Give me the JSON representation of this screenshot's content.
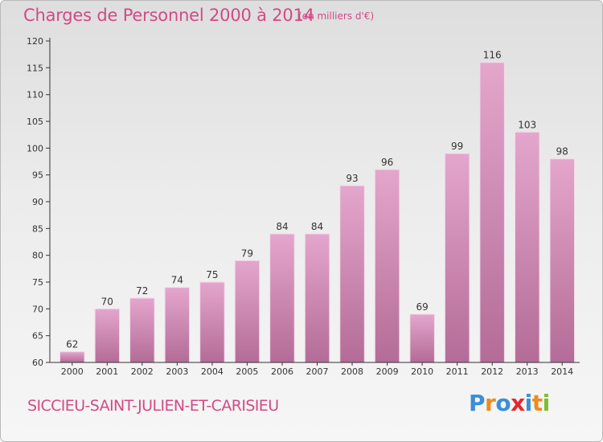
{
  "header": {
    "title": "Charges de Personnel 2000 à 2014",
    "unit": "(en milliers d'€)"
  },
  "footer": {
    "place": "SICCIEU-SAINT-JULIEN-ET-CARISIEU",
    "logo": [
      "P",
      "r",
      "o",
      "x",
      "i",
      "t",
      "i"
    ],
    "logo_colors": [
      "#3a8fd6",
      "#f08a1c",
      "#3a8fd6",
      "#e8262d",
      "#3a8fd6",
      "#f08a1c",
      "#7bbf2a"
    ]
  },
  "colors": {
    "title": "#d24a86",
    "bar_top": "#e4a6cc",
    "bar_bottom": "#b36c97",
    "axis": "#333333"
  },
  "chart_data": {
    "type": "bar",
    "title": "Charges de Personnel 2000 à 2014",
    "subtitle": "(en milliers d'€)",
    "categories": [
      "2000",
      "2001",
      "2002",
      "2003",
      "2004",
      "2005",
      "2006",
      "2007",
      "2008",
      "2009",
      "2010",
      "2011",
      "2012",
      "2013",
      "2014"
    ],
    "values": [
      62,
      70,
      72,
      74,
      75,
      79,
      84,
      84,
      93,
      96,
      69,
      99,
      116,
      103,
      98
    ],
    "ylim": [
      60,
      120
    ],
    "yticks": [
      60,
      65,
      70,
      75,
      80,
      85,
      90,
      95,
      100,
      105,
      110,
      115,
      120
    ],
    "grid": false,
    "data_labels": true
  }
}
